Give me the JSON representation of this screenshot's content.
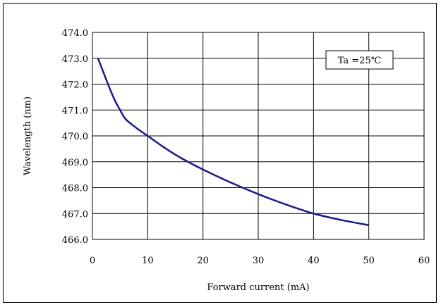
{
  "chart_data": {
    "type": "line",
    "title": "",
    "xlabel": "Forward current (mA)",
    "ylabel": "Wavelength (nm)",
    "xlim": [
      0,
      60
    ],
    "ylim": [
      466.0,
      474.0
    ],
    "xticks": [
      "0",
      "10",
      "20",
      "30",
      "40",
      "50",
      "60"
    ],
    "xtick_values": [
      0,
      10,
      20,
      30,
      40,
      50,
      60
    ],
    "yticks": [
      "474.0",
      "473.0",
      "472.0",
      "471.0",
      "470.0",
      "469.0",
      "468.0",
      "467.0",
      "466.0"
    ],
    "ytick_values": [
      474.0,
      473.0,
      472.0,
      471.0,
      470.0,
      469.0,
      468.0,
      467.0,
      466.0
    ],
    "grid": true,
    "annotation": "Ta =25℃",
    "series": [
      {
        "color": "#1a1a8c",
        "x": [
          1,
          2,
          3,
          4,
          5,
          6,
          8,
          10,
          13,
          16,
          20,
          25,
          30,
          35,
          40,
          45,
          50
        ],
        "y": [
          473.0,
          472.45,
          471.9,
          471.4,
          471.0,
          470.65,
          470.3,
          470.0,
          469.55,
          469.15,
          468.7,
          468.2,
          467.75,
          467.35,
          467.0,
          466.75,
          466.55
        ]
      }
    ]
  }
}
